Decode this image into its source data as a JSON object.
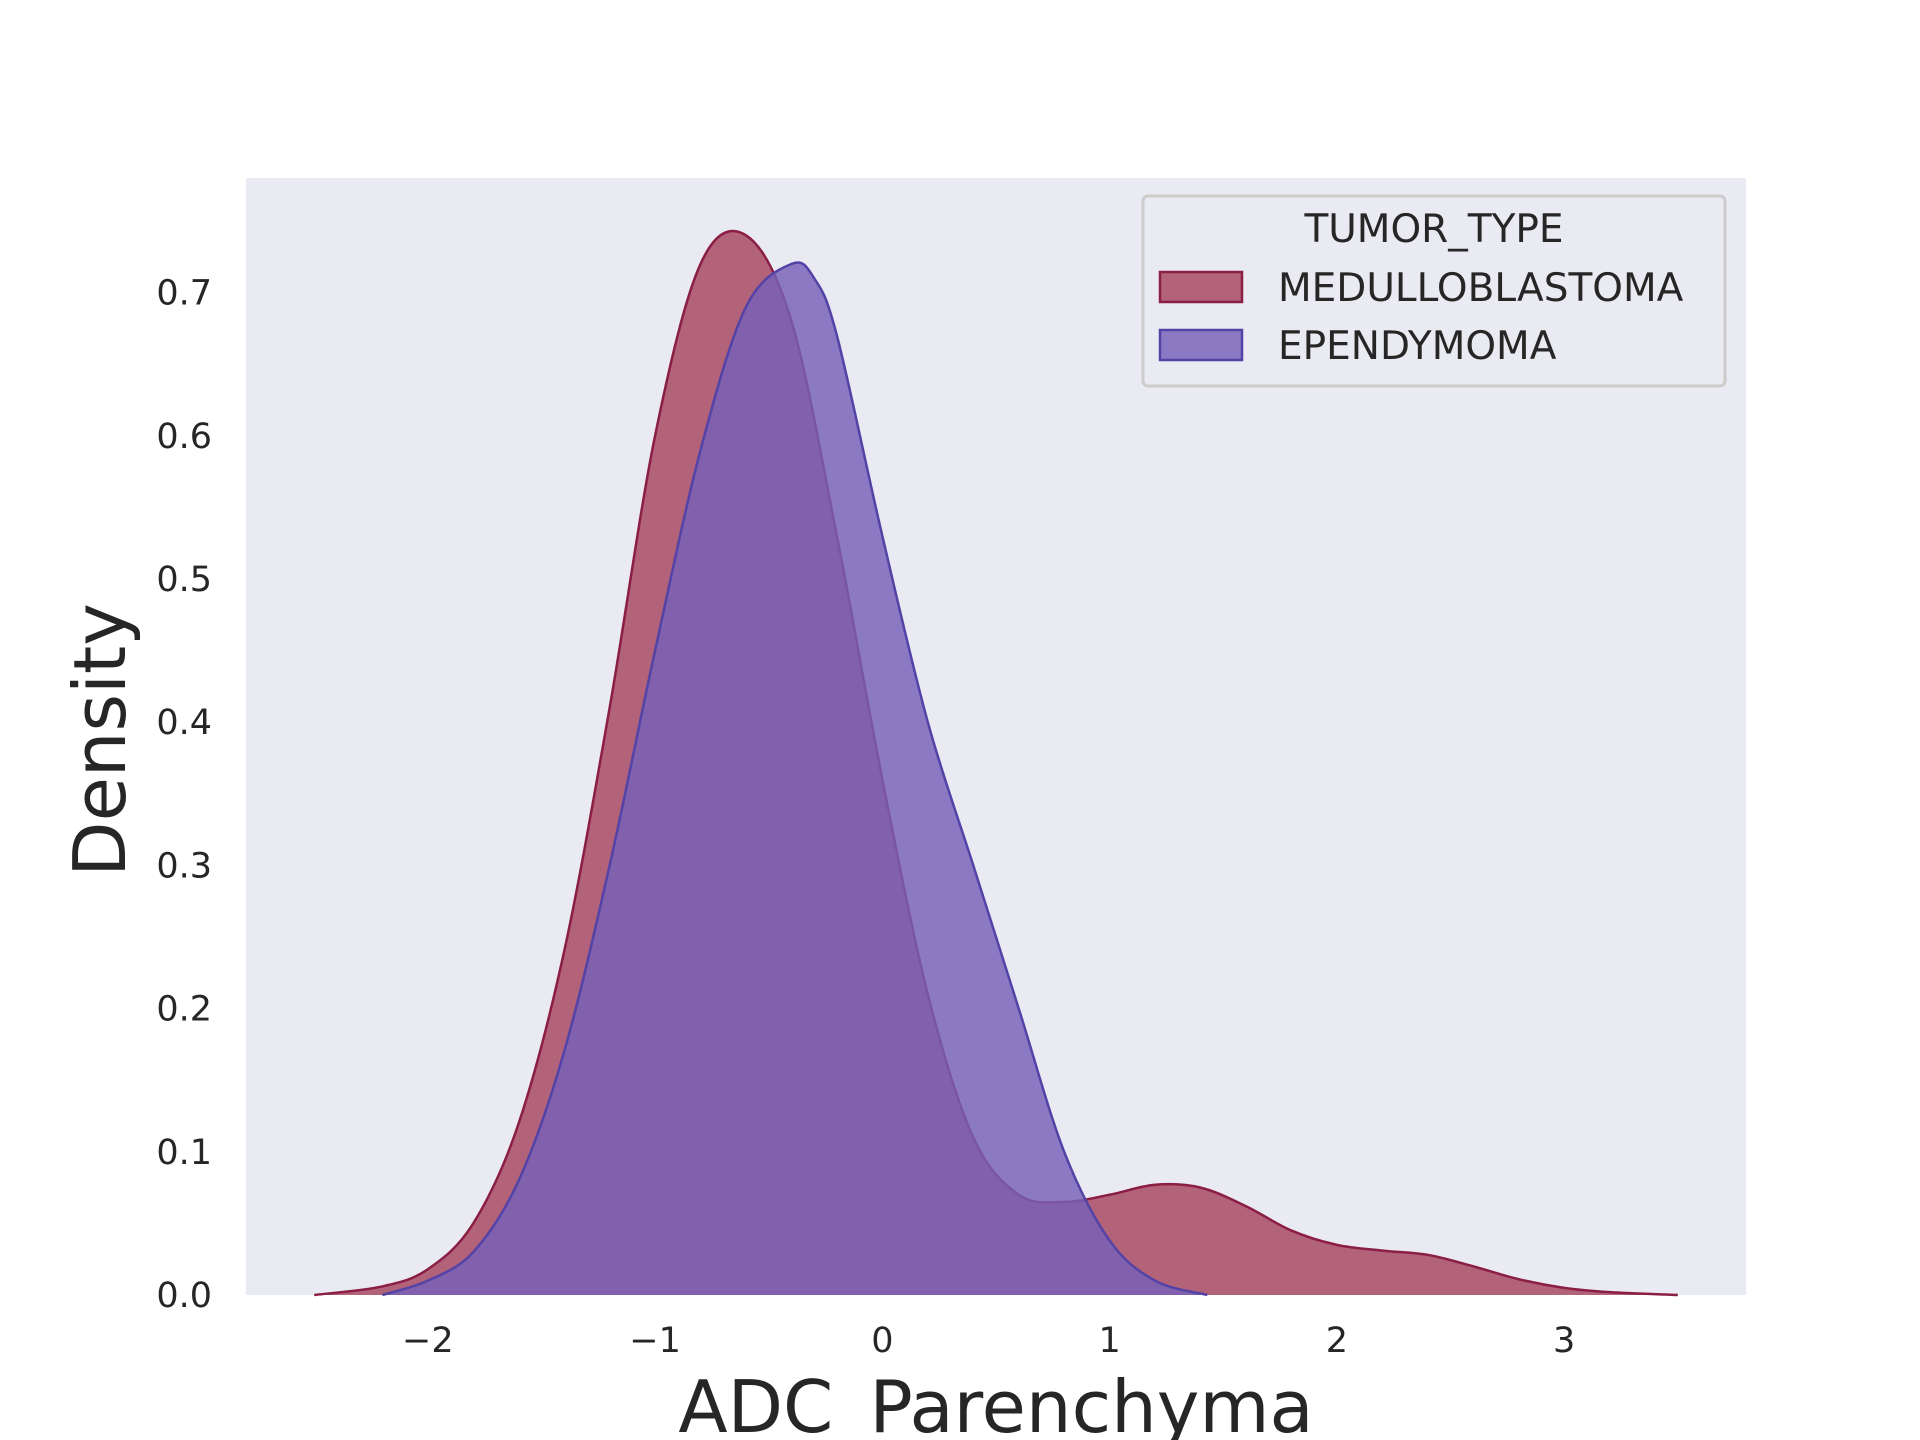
{
  "chart_data": {
    "type": "area",
    "title": "",
    "xlabel": "ADC_Parenchyma",
    "ylabel": "Density",
    "xlim": [
      -2.8,
      3.8
    ],
    "ylim": [
      0,
      0.78
    ],
    "xticks": [
      -2,
      -1,
      0,
      1,
      2,
      3
    ],
    "xtick_labels": [
      "−2",
      "−1",
      "0",
      "1",
      "2",
      "3"
    ],
    "yticks": [
      0.0,
      0.1,
      0.2,
      0.3,
      0.4,
      0.5,
      0.6,
      0.7
    ],
    "ytick_labels": [
      "0.0",
      "0.1",
      "0.2",
      "0.3",
      "0.4",
      "0.5",
      "0.6",
      "0.7"
    ],
    "grid": false,
    "plot_background": "#eaeaf2",
    "legend": {
      "title": "TUMOR_TYPE",
      "placement": "top-right"
    },
    "series": [
      {
        "name": "MEDULLOBLASTOMA",
        "fill": "#a6445e",
        "stroke": "#8b1e45",
        "opacity": 0.82,
        "x": [
          -2.5,
          -2.2,
          -2.0,
          -1.8,
          -1.6,
          -1.4,
          -1.2,
          -1.0,
          -0.8,
          -0.6,
          -0.4,
          -0.2,
          0.0,
          0.2,
          0.4,
          0.6,
          0.8,
          1.0,
          1.2,
          1.4,
          1.6,
          1.8,
          2.0,
          2.2,
          2.4,
          2.6,
          2.8,
          3.0,
          3.2,
          3.5
        ],
        "y": [
          0.0,
          0.006,
          0.018,
          0.05,
          0.12,
          0.24,
          0.41,
          0.6,
          0.72,
          0.74,
          0.68,
          0.53,
          0.36,
          0.21,
          0.11,
          0.07,
          0.065,
          0.07,
          0.077,
          0.075,
          0.062,
          0.045,
          0.035,
          0.031,
          0.028,
          0.02,
          0.011,
          0.005,
          0.002,
          0.0
        ]
      },
      {
        "name": "EPENDYMOMA",
        "fill": "#7661b8",
        "stroke": "#5443a6",
        "opacity": 0.82,
        "x": [
          -2.2,
          -2.0,
          -1.8,
          -1.6,
          -1.4,
          -1.2,
          -1.0,
          -0.8,
          -0.6,
          -0.4,
          -0.3,
          -0.2,
          0.0,
          0.2,
          0.4,
          0.6,
          0.8,
          1.0,
          1.2,
          1.43
        ],
        "y": [
          0.0,
          0.01,
          0.03,
          0.08,
          0.17,
          0.3,
          0.45,
          0.59,
          0.69,
          0.72,
          0.71,
          0.67,
          0.53,
          0.4,
          0.3,
          0.2,
          0.1,
          0.038,
          0.01,
          0.0
        ]
      }
    ]
  }
}
